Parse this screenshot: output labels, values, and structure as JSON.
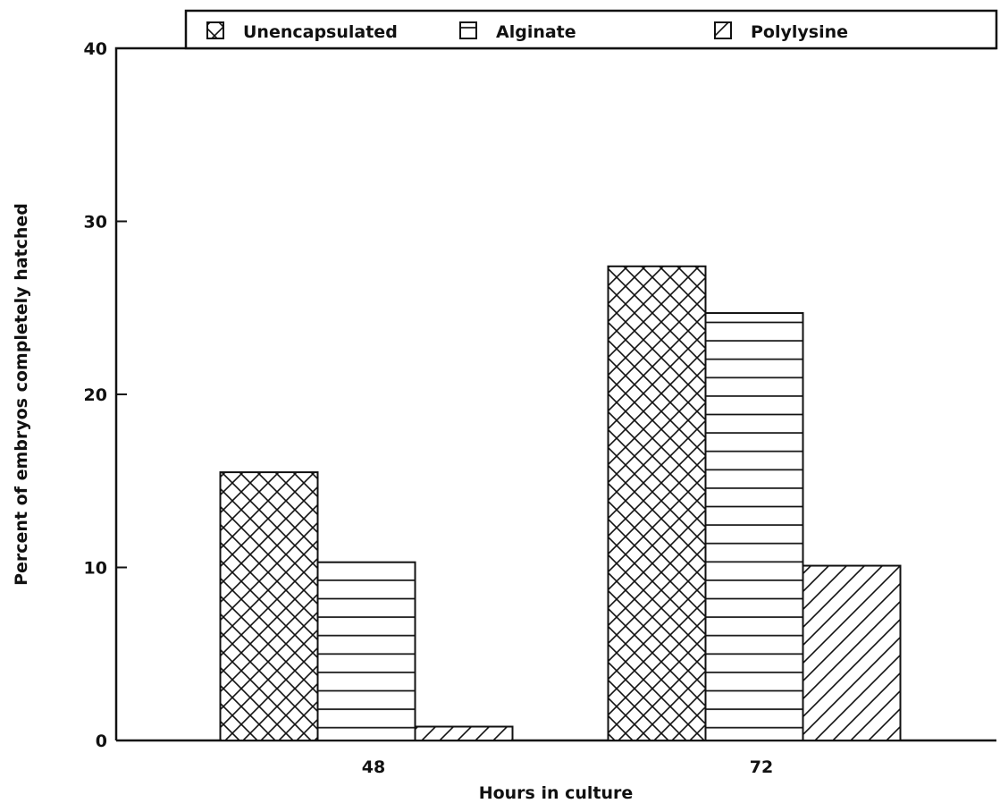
{
  "chart_data": {
    "type": "bar",
    "title": "",
    "xlabel": "Hours in culture",
    "ylabel": "Percent of embryos completely hatched",
    "categories": [
      "48",
      "72"
    ],
    "series": [
      {
        "name": "Unencapsulated",
        "pattern": "crosshatch",
        "values": [
          15.5,
          27.4
        ]
      },
      {
        "name": "Alginate",
        "pattern": "horizontal",
        "values": [
          10.3,
          24.7
        ]
      },
      {
        "name": "Polylysine",
        "pattern": "diagonal",
        "values": [
          0.8,
          10.1
        ]
      }
    ],
    "ylim": [
      0,
      40
    ],
    "yticks": [
      "0",
      "10",
      "20",
      "30",
      "40"
    ],
    "grid": false,
    "legend_position": "top",
    "colors": {
      "ink": "#111111",
      "background": "#ffffff"
    }
  }
}
